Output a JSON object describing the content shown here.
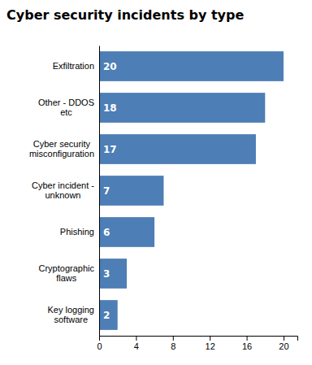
{
  "chart_data": {
    "type": "bar",
    "orientation": "horizontal",
    "title": "Cyber security incidents by type",
    "categories": [
      "Exfiltration",
      "Other - DDOS\netc",
      "Cyber security\nmisconfiguration",
      "Cyber incident -\nunknown",
      "Phishing",
      "Cryptographic\nflaws",
      "Key logging\nsoftware"
    ],
    "values": [
      20,
      18,
      17,
      7,
      6,
      3,
      2
    ],
    "color": "#4d7eb5",
    "xlim": [
      0,
      21.5
    ],
    "xticks": [
      0,
      4,
      8,
      12,
      16,
      20
    ],
    "data_labels": true,
    "grid": false
  }
}
